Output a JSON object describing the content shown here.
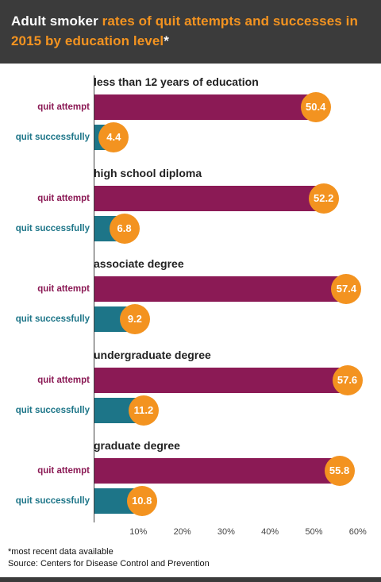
{
  "header": {
    "title_lead": "Adult smoker ",
    "title_highlight": "rates of quit attempts and successes in 2015 by education level",
    "title_tail": "*"
  },
  "chart_data": {
    "type": "bar",
    "orientation": "horizontal",
    "title": "Adult smoker rates of quit attempts and successes in 2015 by education level*",
    "categories": [
      "less than 12 years of education",
      "high school diploma",
      "associate degree",
      "undergraduate degree",
      "graduate degree"
    ],
    "series": [
      {
        "name": "quit attempt",
        "values": [
          50.4,
          52.2,
          57.4,
          57.6,
          55.8
        ],
        "color": "#8b1a55"
      },
      {
        "name": "quit successfully",
        "values": [
          4.4,
          6.8,
          9.2,
          11.2,
          10.8
        ],
        "color": "#1d7588"
      }
    ],
    "xlim": [
      0,
      60
    ],
    "xticks": [
      "10%",
      "20%",
      "30%",
      "40%",
      "50%",
      "60%"
    ],
    "value_label_color": "#f39320",
    "grid": false
  },
  "footnotes": {
    "note": "*most recent data available",
    "source": "Source: Centers for Disease Control and Prevention"
  }
}
